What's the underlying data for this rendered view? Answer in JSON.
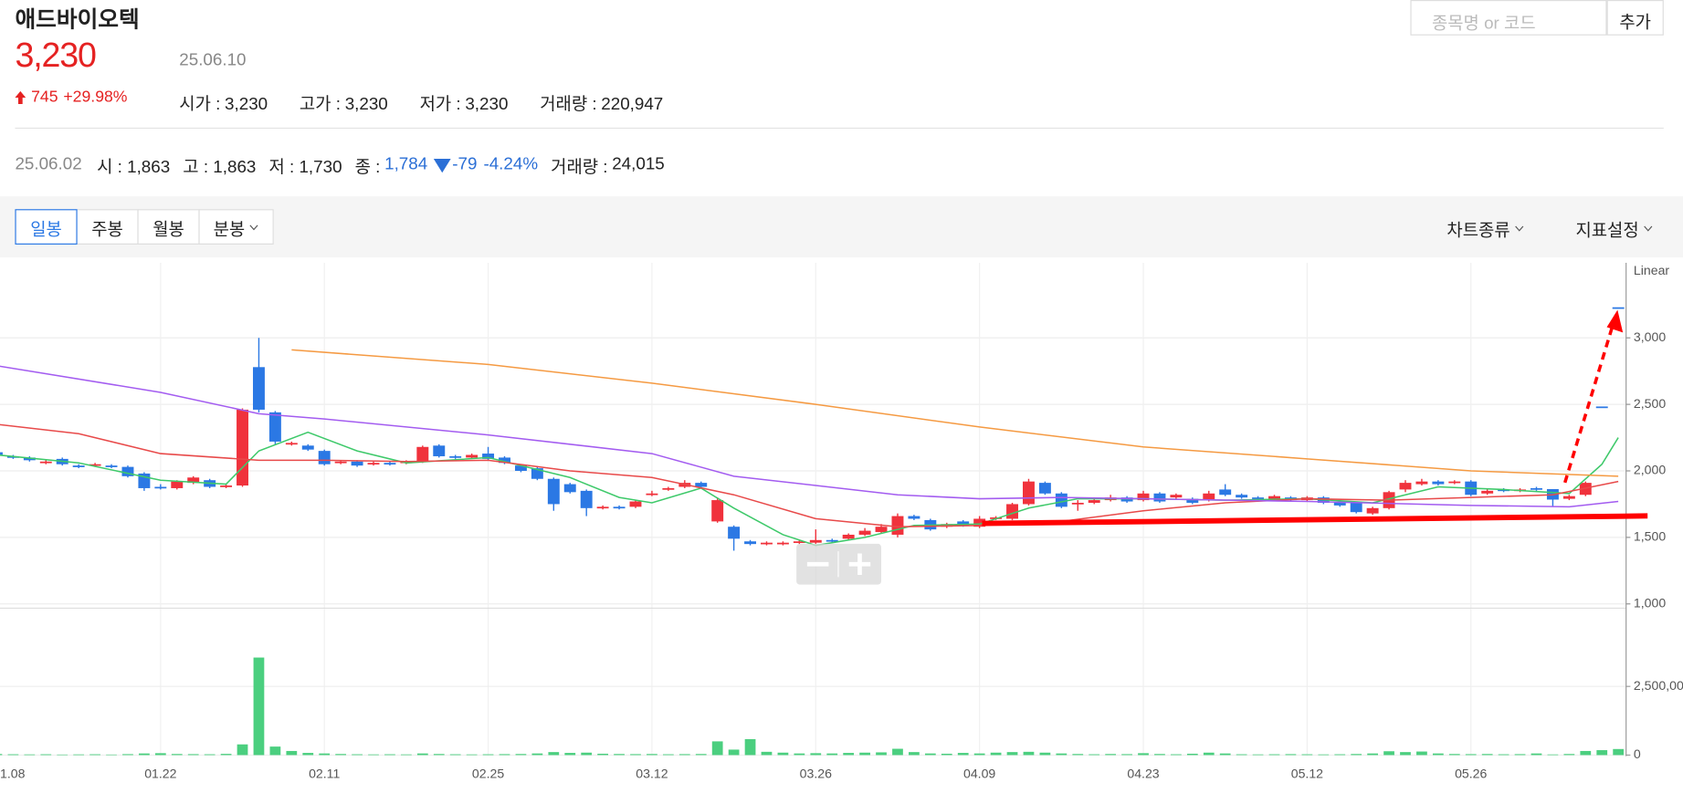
{
  "header": {
    "name": "애드바이오텍",
    "price": "3,230",
    "date": "25.06.10",
    "change": "745",
    "change_pct": "+29.98%",
    "stats": [
      {
        "label": "시가 :",
        "value": "3,230"
      },
      {
        "label": "고가 :",
        "value": "3,230"
      },
      {
        "label": "저가 :",
        "value": "3,230"
      },
      {
        "label": "거래량 :",
        "value": "220,947"
      }
    ]
  },
  "search": {
    "placeholder": "종목명 or 코드",
    "button": "추가"
  },
  "hover": {
    "date": "25.06.02",
    "items": [
      {
        "label": "시 :",
        "value": "1,863"
      },
      {
        "label": "고 :",
        "value": "1,863"
      },
      {
        "label": "저 :",
        "value": "1,730"
      }
    ],
    "close_label": "종 :",
    "close": "1,784",
    "change": "-79",
    "change_pct": "-4.24%",
    "volume_label": "거래량 :",
    "volume": "24,015"
  },
  "toolbar": {
    "tabs": [
      "일봉",
      "주봉",
      "월봉",
      "분봉"
    ],
    "selected_tab": 0,
    "right": [
      "차트종류",
      "지표설정"
    ]
  },
  "chart_data": [
    {
      "type": "candlestick",
      "scale_label": "Linear",
      "categories": [
        "1.08",
        null,
        null,
        null,
        null,
        null,
        null,
        null,
        null,
        null,
        "01.22",
        null,
        null,
        null,
        null,
        null,
        null,
        null,
        null,
        null,
        "02.11",
        null,
        null,
        null,
        null,
        null,
        null,
        null,
        null,
        null,
        "02.25",
        null,
        null,
        null,
        null,
        null,
        null,
        null,
        null,
        null,
        "03.12",
        null,
        null,
        null,
        null,
        null,
        null,
        null,
        null,
        null,
        "03.26",
        null,
        null,
        null,
        null,
        null,
        null,
        null,
        null,
        null,
        "04.09",
        null,
        null,
        null,
        null,
        null,
        null,
        null,
        null,
        null,
        "04.23",
        null,
        null,
        null,
        null,
        null,
        null,
        null,
        null,
        null,
        "05.12",
        null,
        null,
        null,
        null,
        null,
        null,
        null,
        null,
        null,
        "05.26",
        null,
        null,
        null,
        null,
        null,
        null,
        null,
        null,
        null
      ],
      "open": [
        2140,
        2110,
        2100,
        2060,
        2090,
        2040,
        2040,
        2040,
        2030,
        1980,
        1880,
        1870,
        1910,
        1930,
        1880,
        1890,
        2780,
        2440,
        2200,
        2190,
        2150,
        2060,
        2070,
        2050,
        2060,
        2060,
        2070,
        2190,
        2110,
        2100,
        2130,
        2100,
        2040,
        2020,
        1940,
        1900,
        1850,
        1720,
        1730,
        1730,
        1820,
        1860,
        1880,
        1910,
        1620,
        1580,
        1470,
        1450,
        1450,
        1460,
        1460,
        1480,
        1490,
        1520,
        1540,
        1520,
        1660,
        1630,
        1580,
        1620,
        1580,
        1640,
        1640,
        1750,
        1910,
        1830,
        1750,
        1760,
        1780,
        1800,
        1780,
        1830,
        1800,
        1790,
        1780,
        1860,
        1820,
        1800,
        1790,
        1800,
        1780,
        1800,
        1770,
        1760,
        1680,
        1720,
        1860,
        1900,
        1920,
        1910,
        1920,
        1830,
        1860,
        1850,
        1870,
        1863,
        1790,
        1820,
        2484,
        3230
      ],
      "high": [
        2150,
        2120,
        2110,
        2080,
        2100,
        2050,
        2060,
        2050,
        2040,
        1990,
        1900,
        1930,
        1960,
        1940,
        1900,
        2470,
        3000,
        2450,
        2220,
        2200,
        2160,
        2080,
        2080,
        2070,
        2070,
        2080,
        2190,
        2200,
        2120,
        2130,
        2180,
        2110,
        2050,
        2030,
        1950,
        1910,
        1860,
        1740,
        1740,
        1780,
        1850,
        1880,
        1930,
        1920,
        1800,
        1590,
        1480,
        1470,
        1470,
        1480,
        1560,
        1490,
        1530,
        1570,
        1600,
        1680,
        1670,
        1640,
        1610,
        1630,
        1660,
        1660,
        1760,
        1940,
        1920,
        1840,
        1780,
        1790,
        1820,
        1810,
        1850,
        1840,
        1830,
        1800,
        1850,
        1900,
        1830,
        1810,
        1820,
        1810,
        1810,
        1810,
        1780,
        1770,
        1730,
        1850,
        1930,
        1940,
        1930,
        1930,
        1930,
        1860,
        1870,
        1870,
        1880,
        1863,
        1820,
        1920,
        2484,
        3230
      ],
      "low": [
        2110,
        2090,
        2070,
        2050,
        2040,
        2020,
        2030,
        2020,
        1950,
        1850,
        1860,
        1860,
        1900,
        1870,
        1870,
        1880,
        2440,
        2200,
        2190,
        2150,
        2040,
        2050,
        2030,
        2040,
        2040,
        2050,
        2060,
        2100,
        2090,
        2090,
        2080,
        2050,
        1990,
        1930,
        1700,
        1830,
        1660,
        1710,
        1710,
        1720,
        1810,
        1850,
        1870,
        1870,
        1610,
        1400,
        1440,
        1440,
        1440,
        1450,
        1450,
        1460,
        1480,
        1510,
        1530,
        1500,
        1630,
        1550,
        1570,
        1580,
        1570,
        1630,
        1630,
        1740,
        1820,
        1720,
        1700,
        1750,
        1770,
        1760,
        1770,
        1760,
        1790,
        1750,
        1770,
        1810,
        1790,
        1780,
        1780,
        1770,
        1770,
        1750,
        1730,
        1680,
        1670,
        1710,
        1840,
        1890,
        1890,
        1900,
        1810,
        1820,
        1840,
        1840,
        1850,
        1730,
        1780,
        1810,
        2484,
        3230
      ],
      "close": [
        2120,
        2100,
        2080,
        2070,
        2050,
        2030,
        2050,
        2030,
        1960,
        1870,
        1880,
        1920,
        1950,
        1880,
        1890,
        2460,
        2460,
        2220,
        2210,
        2160,
        2050,
        2070,
        2040,
        2060,
        2050,
        2070,
        2180,
        2110,
        2100,
        2120,
        2090,
        2060,
        2000,
        1940,
        1750,
        1840,
        1720,
        1730,
        1720,
        1770,
        1830,
        1870,
        1910,
        1880,
        1780,
        1490,
        1450,
        1460,
        1460,
        1470,
        1480,
        1470,
        1520,
        1550,
        1580,
        1660,
        1640,
        1560,
        1600,
        1590,
        1640,
        1650,
        1750,
        1920,
        1830,
        1730,
        1760,
        1780,
        1800,
        1770,
        1830,
        1770,
        1820,
        1760,
        1830,
        1820,
        1800,
        1790,
        1810,
        1780,
        1800,
        1760,
        1740,
        1690,
        1720,
        1840,
        1910,
        1920,
        1900,
        1920,
        1820,
        1850,
        1850,
        1860,
        1860,
        1784,
        1810,
        1910,
        2484,
        3230
      ],
      "up_color": "#f0323c",
      "down_color": "#2b78e4",
      "series": [
        {
          "color": "#3ec96a",
          "x": [
            0,
            5,
            10,
            14,
            16,
            19,
            22,
            25,
            30,
            35,
            38,
            40,
            43,
            45,
            48,
            50,
            53,
            56,
            60,
            63,
            66,
            70,
            75,
            80,
            84,
            88,
            92,
            96,
            98,
            99
          ],
          "values": [
            2120,
            2060,
            1930,
            1900,
            2150,
            2290,
            2150,
            2060,
            2100,
            1950,
            1800,
            1760,
            1870,
            1720,
            1520,
            1440,
            1500,
            1590,
            1600,
            1720,
            1790,
            1790,
            1780,
            1790,
            1760,
            1880,
            1860,
            1830,
            2050,
            2250
          ]
        },
        {
          "color": "#e84a4a",
          "x": [
            0,
            5,
            10,
            16,
            20,
            25,
            30,
            35,
            40,
            45,
            50,
            55,
            60,
            65,
            70,
            75,
            80,
            85,
            90,
            95,
            99
          ],
          "values": [
            2350,
            2280,
            2130,
            2080,
            2080,
            2070,
            2080,
            2000,
            1950,
            1820,
            1640,
            1580,
            1590,
            1620,
            1700,
            1760,
            1790,
            1780,
            1800,
            1820,
            1920
          ]
        },
        {
          "color": "#a35cf0",
          "x": [
            0,
            10,
            16,
            20,
            30,
            40,
            45,
            50,
            55,
            60,
            65,
            70,
            80,
            90,
            96,
            99
          ],
          "values": [
            2790,
            2590,
            2430,
            2390,
            2270,
            2130,
            1960,
            1890,
            1820,
            1790,
            1800,
            1790,
            1770,
            1740,
            1730,
            1770
          ]
        },
        {
          "color": "#f59a42",
          "x": [
            18,
            30,
            40,
            50,
            60,
            70,
            80,
            90,
            99
          ],
          "values": [
            2910,
            2800,
            2660,
            2500,
            2330,
            2180,
            2090,
            2000,
            1960
          ]
        }
      ],
      "ylim": [
        984,
        3508
      ],
      "yticks": [
        {
          "value": 1000,
          "label": "1,000"
        },
        {
          "value": 1500,
          "label": "1,500"
        },
        {
          "value": 2000,
          "label": "2,000"
        },
        {
          "value": 2500,
          "label": "2,500"
        },
        {
          "value": 3000,
          "label": "3,000"
        }
      ],
      "grid": true
    },
    {
      "type": "bar",
      "color": "#4bcf7f",
      "values": [
        40000,
        30000,
        25000,
        30000,
        20000,
        25000,
        30000,
        20000,
        35000,
        60000,
        70000,
        40000,
        35000,
        30000,
        45000,
        390000,
        3550000,
        310000,
        150000,
        80000,
        60000,
        40000,
        30000,
        25000,
        30000,
        25000,
        60000,
        40000,
        30000,
        25000,
        30000,
        35000,
        40000,
        60000,
        110000,
        80000,
        90000,
        50000,
        40000,
        35000,
        40000,
        30000,
        35000,
        40000,
        500000,
        200000,
        580000,
        120000,
        90000,
        60000,
        70000,
        60000,
        80000,
        90000,
        100000,
        230000,
        110000,
        60000,
        50000,
        80000,
        60000,
        90000,
        110000,
        120000,
        90000,
        60000,
        40000,
        30000,
        40000,
        35000,
        70000,
        40000,
        30000,
        50000,
        90000,
        60000,
        30000,
        25000,
        30000,
        35000,
        30000,
        25000,
        30000,
        40000,
        60000,
        140000,
        110000,
        130000,
        60000,
        40000,
        35000,
        40000,
        30000,
        35000,
        60000,
        24015,
        40000,
        150000,
        180000,
        220947
      ],
      "ylim": [
        0,
        5230000
      ],
      "yticks": [
        0,
        {
          "value": 2500000,
          "label": "2,500,00"
        }
      ],
      "grid": true
    }
  ]
}
